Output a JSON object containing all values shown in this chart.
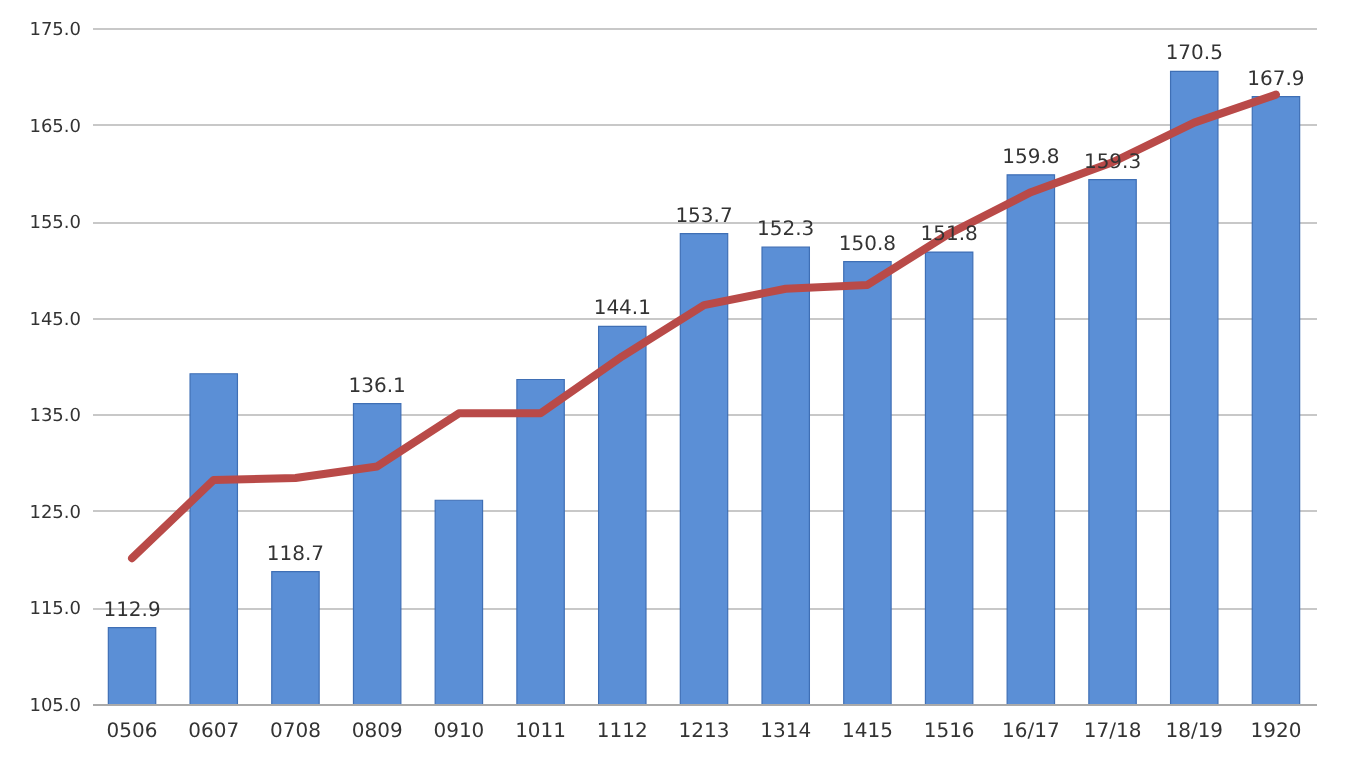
{
  "chart_data": {
    "type": "bar",
    "categories": [
      "0506",
      "0607",
      "0708",
      "0809",
      "0910",
      "1011",
      "1112",
      "1213",
      "1314",
      "1415",
      "1516",
      "16/17",
      "17/18",
      "18/19",
      "1920"
    ],
    "series": [
      {
        "color": "#5b8fd6",
        "values": [
          112.9,
          139.2,
          118.7,
          136.1,
          126.1,
          138.6,
          144.1,
          153.7,
          152.3,
          150.8,
          151.8,
          159.8,
          159.3,
          170.5,
          167.9
        ],
        "value_labels": [
          "112.9",
          null,
          "118.7",
          "136.1",
          null,
          null,
          "144.1",
          "153.7",
          "152.3",
          "150.8",
          "151.8",
          "159.8",
          "159.3",
          "170.5",
          "167.9"
        ]
      },
      {
        "type": "line",
        "color": "#b94a48",
        "values": [
          120.1,
          128.2,
          128.4,
          129.6,
          135.1,
          135.1,
          141.0,
          146.3,
          148.0,
          148.4,
          153.7,
          158.0,
          161.1,
          165.2,
          168.1
        ]
      }
    ],
    "ylim": [
      105,
      175
    ],
    "yticks": [
      {
        "value": 105,
        "label": "105.0"
      },
      {
        "value": 115,
        "label": "115.0"
      },
      {
        "value": 125,
        "label": "125.0"
      },
      {
        "value": 135,
        "label": "135.0"
      },
      {
        "value": 145,
        "label": "145.0"
      },
      {
        "value": 155,
        "label": "155.0"
      },
      {
        "value": 165,
        "label": "165.0"
      },
      {
        "value": 175,
        "label": "175.0"
      }
    ],
    "grid": "y",
    "marker": "none",
    "line_style": "solid"
  }
}
